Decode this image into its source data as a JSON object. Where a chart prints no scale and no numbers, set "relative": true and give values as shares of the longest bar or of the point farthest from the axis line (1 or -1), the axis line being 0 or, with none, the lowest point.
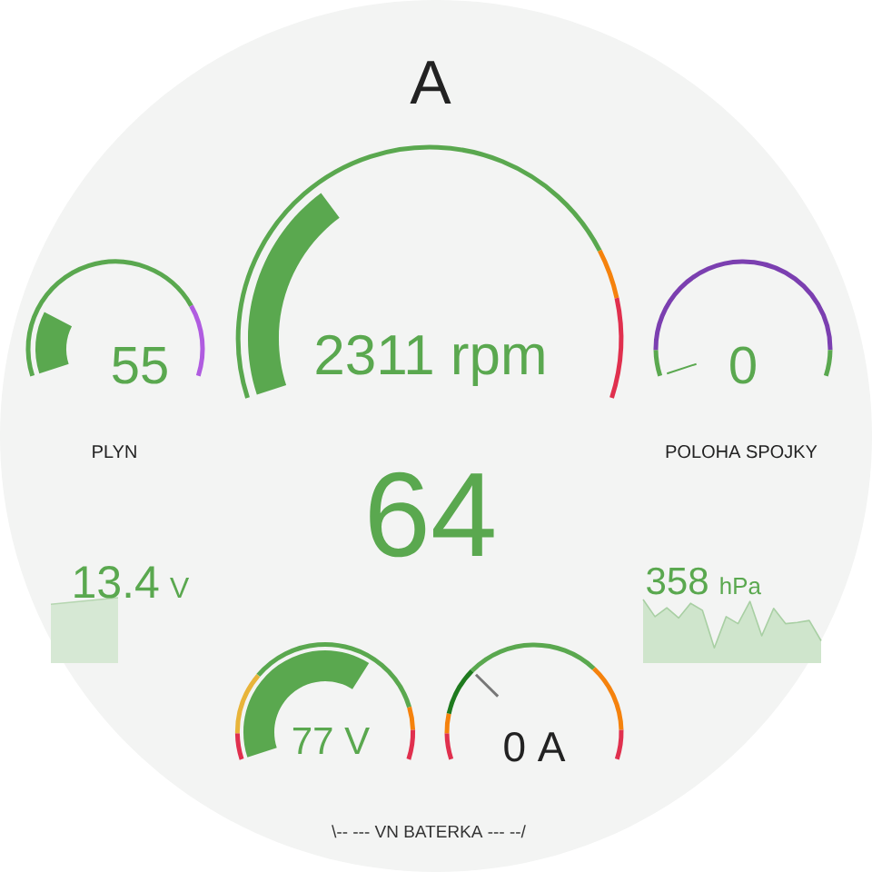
{
  "chart_data": [
    {
      "type": "other",
      "title": "A",
      "values": [
        64
      ],
      "data_labels": true,
      "annotations": [
        "\\-- --- VN BATERKA --- --/"
      ]
    },
    {
      "type": "other",
      "annotations": [
        "55",
        "PLYN"
      ]
    },
    {
      "type": "other",
      "annotations": [
        "2311 rpm"
      ]
    },
    {
      "type": "other",
      "annotations": [
        "0",
        "POLOHA SPOJKY"
      ]
    },
    {
      "type": "area",
      "relative": true,
      "categories": [
        null,
        null
      ],
      "values": [
        0.9,
        1
      ],
      "color": "#b5d6b0",
      "annotations": [
        "13.4",
        "V"
      ]
    },
    {
      "type": "area",
      "relative": true,
      "categories": [
        null,
        null,
        null,
        null,
        null,
        null,
        null,
        null,
        null,
        null,
        null,
        null,
        null,
        null,
        null,
        null
      ],
      "values": [
        1,
        0.73,
        0.87,
        0.71,
        0.94,
        0.83,
        0.24,
        0.73,
        0.62,
        0.97,
        0.43,
        0.86,
        0.62,
        0.64,
        0.67,
        0.35
      ],
      "color": "#a8cfa3",
      "annotations": [
        "358",
        "hPa"
      ]
    },
    {
      "type": "other",
      "annotations": [
        "77 V"
      ]
    },
    {
      "type": "other",
      "annotations": [
        "0 A"
      ]
    }
  ]
}
